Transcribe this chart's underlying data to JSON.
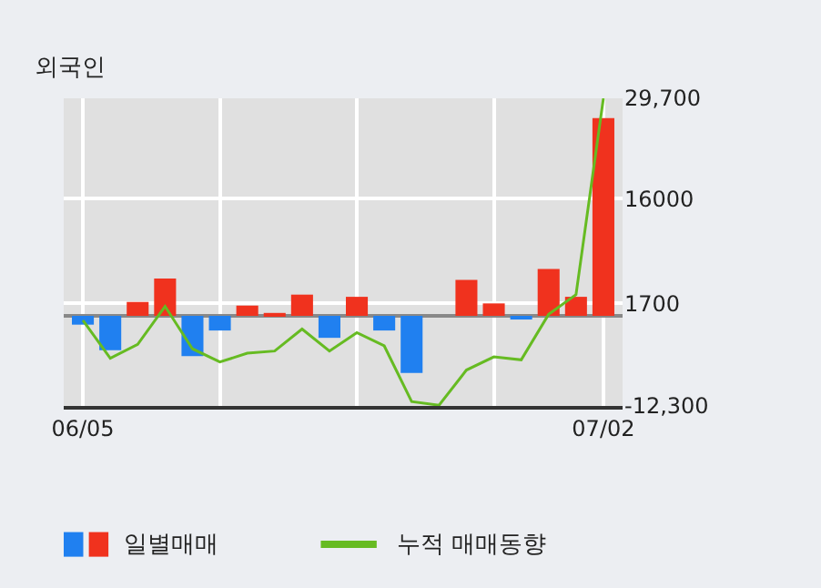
{
  "chart_data": {
    "type": "bar",
    "title": "외국인",
    "categories": [
      "06/05",
      null,
      null,
      null,
      null,
      null,
      null,
      null,
      null,
      null,
      null,
      null,
      null,
      null,
      null,
      null,
      null,
      null,
      null,
      "07/02"
    ],
    "series": [
      {
        "name": "일별매매",
        "colors": [
          "#2080f0",
          "#2080f0",
          "#f0321e",
          "#f0321e",
          "#2080f0",
          "#2080f0",
          "#f0321e",
          "#f0321e",
          "#f0321e",
          "#2080f0",
          "#f0321e",
          "#2080f0",
          "#2080f0",
          "#f0321e",
          "#f0321e",
          "#f0321e",
          "#2080f0",
          "#f0321e",
          "#f0321e",
          "#f0321e"
        ],
        "values": [
          -1200,
          -4700,
          1900,
          5100,
          -5500,
          -2000,
          1400,
          400,
          2900,
          -3000,
          2600,
          -2000,
          -7800,
          0,
          4900,
          1700,
          -500,
          6400,
          2600,
          27000
        ]
      },
      {
        "name": "누적 매매동향",
        "type": "line",
        "color": "#66bb22",
        "values": [
          -600,
          -5800,
          -3900,
          1300,
          -4500,
          -6300,
          -5100,
          -4800,
          -1800,
          -4800,
          -2300,
          -4100,
          -11700,
          -12200,
          -7400,
          -5600,
          -6000,
          200,
          2900,
          29700
        ]
      }
    ],
    "ylim": [
      -12300,
      29700
    ],
    "yticks": [
      {
        "value": 29700,
        "label": "29,700"
      },
      16000,
      1700,
      {
        "value": -12300,
        "label": "-12,300"
      }
    ],
    "grid": true,
    "legend": "bottom",
    "marker": "none",
    "line_style": "solid"
  }
}
